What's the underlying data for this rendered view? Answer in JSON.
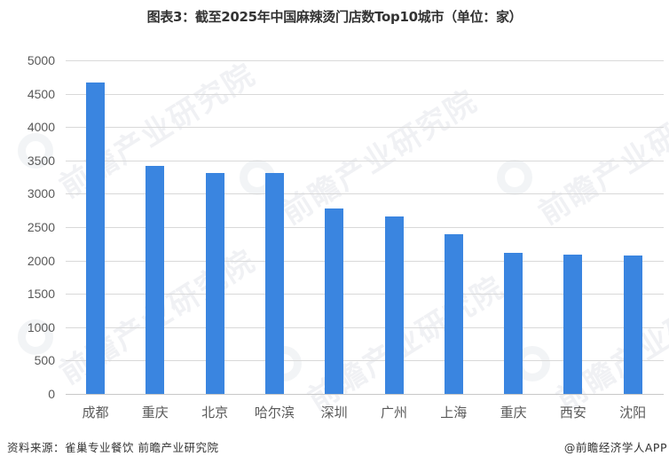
{
  "title": "图表3：截至2025年中国麻辣烫门店数Top10城市（单位：家）",
  "chart_data": {
    "type": "bar",
    "title": "图表3：截至2025年中国麻辣烫门店数Top10城市（单位：家）",
    "xlabel": "",
    "ylabel": "",
    "unit": "家",
    "categories": [
      "成都",
      "重庆",
      "北京",
      "哈尔滨",
      "深圳",
      "广州",
      "上海",
      "重庆",
      "西安",
      "沈阳"
    ],
    "values": [
      4670,
      3420,
      3310,
      3310,
      2780,
      2660,
      2400,
      2115,
      2090,
      2075
    ],
    "ylim": [
      0,
      5000
    ],
    "yticks": [
      0,
      500,
      1000,
      1500,
      2000,
      2500,
      3000,
      3500,
      4000,
      4500,
      5000
    ],
    "grid": true,
    "legend": "none",
    "bar_color": "#3a85e0"
  },
  "yticks_labels": [
    "5000",
    "4500",
    "4000",
    "3500",
    "3000",
    "2500",
    "2000",
    "1500",
    "1000",
    "500",
    "0"
  ],
  "footer": {
    "source": "资料来源：雀巢专业餐饮 前瞻产业研究院",
    "credit": "@前瞻经济学人APP"
  },
  "watermark": {
    "text": "前瞻产业研究院"
  }
}
